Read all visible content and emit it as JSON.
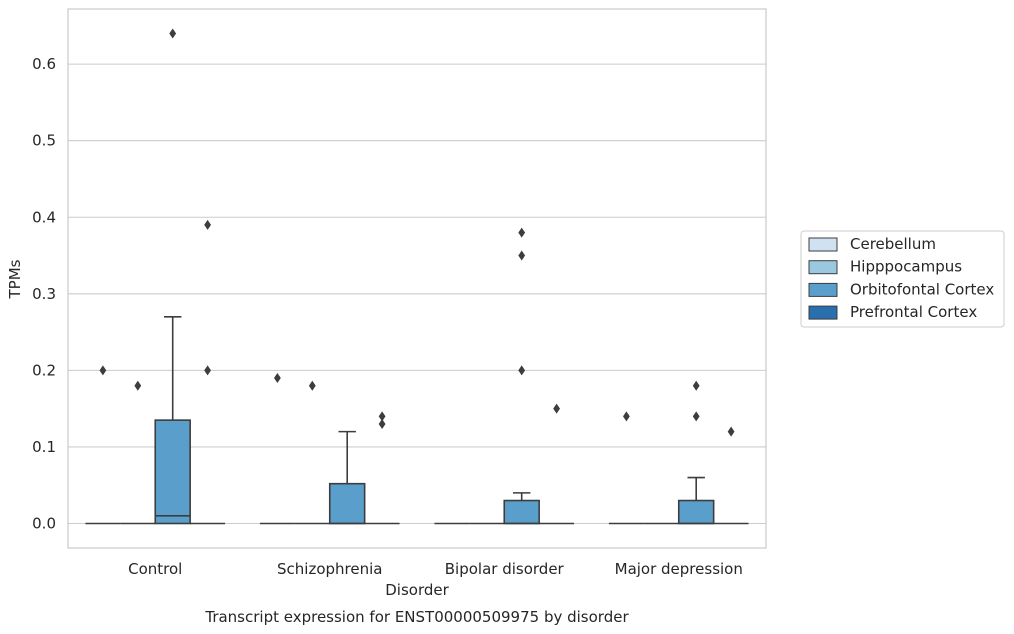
{
  "chart_data": {
    "type": "box",
    "caption": "Transcript expression for ENST00000509975 by disorder",
    "xlabel": "Disorder",
    "ylabel": "TPMs",
    "ylim": [
      -0.032,
      0.672
    ],
    "yticks": [
      0.0,
      0.1,
      0.2,
      0.3,
      0.4,
      0.5,
      0.6
    ],
    "ytick_labels": [
      "0.0",
      "0.1",
      "0.2",
      "0.3",
      "0.4",
      "0.5",
      "0.6"
    ],
    "grid": "horizontal",
    "legend_position": "outside-right",
    "categories": [
      "Control",
      "Schizophrenia",
      "Bipolar disorder",
      "Major depression"
    ],
    "series": [
      {
        "name": "Cerebellum",
        "color": "#d0e2f2",
        "boxes": [
          {
            "category": "Control",
            "q1": 0,
            "median": 0,
            "q3": 0,
            "whisker_low": 0,
            "whisker_high": 0,
            "outliers": [
              0.2
            ]
          },
          {
            "category": "Schizophrenia",
            "q1": 0,
            "median": 0,
            "q3": 0,
            "whisker_low": 0,
            "whisker_high": 0,
            "outliers": [
              0.19
            ]
          },
          {
            "category": "Bipolar disorder",
            "q1": 0,
            "median": 0,
            "q3": 0,
            "whisker_low": 0,
            "whisker_high": 0,
            "outliers": []
          },
          {
            "category": "Major depression",
            "q1": 0,
            "median": 0,
            "q3": 0,
            "whisker_low": 0,
            "whisker_high": 0,
            "outliers": [
              0.14
            ]
          }
        ]
      },
      {
        "name": "Hipppocampus",
        "color": "#9ac8e0",
        "boxes": [
          {
            "category": "Control",
            "q1": 0,
            "median": 0,
            "q3": 0,
            "whisker_low": 0,
            "whisker_high": 0,
            "outliers": [
              0.18
            ]
          },
          {
            "category": "Schizophrenia",
            "q1": 0,
            "median": 0,
            "q3": 0,
            "whisker_low": 0,
            "whisker_high": 0,
            "outliers": [
              0.18
            ]
          },
          {
            "category": "Bipolar disorder",
            "q1": 0,
            "median": 0,
            "q3": 0,
            "whisker_low": 0,
            "whisker_high": 0,
            "outliers": []
          },
          {
            "category": "Major depression",
            "q1": 0,
            "median": 0,
            "q3": 0,
            "whisker_low": 0,
            "whisker_high": 0,
            "outliers": []
          }
        ]
      },
      {
        "name": "Orbitofontal Cortex",
        "color": "#5a9ecc",
        "boxes": [
          {
            "category": "Control",
            "q1": 0,
            "median": 0.01,
            "q3": 0.135,
            "whisker_low": 0,
            "whisker_high": 0.27,
            "outliers": [
              0.64
            ]
          },
          {
            "category": "Schizophrenia",
            "q1": 0,
            "median": 0,
            "q3": 0.052,
            "whisker_low": 0,
            "whisker_high": 0.12,
            "outliers": []
          },
          {
            "category": "Bipolar disorder",
            "q1": 0,
            "median": 0,
            "q3": 0.03,
            "whisker_low": 0,
            "whisker_high": 0.04,
            "outliers": [
              0.38,
              0.35,
              0.2
            ]
          },
          {
            "category": "Major depression",
            "q1": 0,
            "median": 0,
            "q3": 0.03,
            "whisker_low": 0,
            "whisker_high": 0.06,
            "outliers": [
              0.18,
              0.14
            ]
          }
        ]
      },
      {
        "name": "Prefrontal Cortex",
        "color": "#2a6fad",
        "boxes": [
          {
            "category": "Control",
            "q1": 0,
            "median": 0,
            "q3": 0,
            "whisker_low": 0,
            "whisker_high": 0,
            "outliers": [
              0.39,
              0.2
            ]
          },
          {
            "category": "Schizophrenia",
            "q1": 0,
            "median": 0,
            "q3": 0,
            "whisker_low": 0,
            "whisker_high": 0,
            "outliers": [
              0.14,
              0.13
            ]
          },
          {
            "category": "Bipolar disorder",
            "q1": 0,
            "median": 0,
            "q3": 0,
            "whisker_low": 0,
            "whisker_high": 0,
            "outliers": [
              0.15
            ]
          },
          {
            "category": "Major depression",
            "q1": 0,
            "median": 0,
            "q3": 0,
            "whisker_low": 0,
            "whisker_high": 0,
            "outliers": [
              0.12
            ]
          }
        ]
      }
    ]
  }
}
